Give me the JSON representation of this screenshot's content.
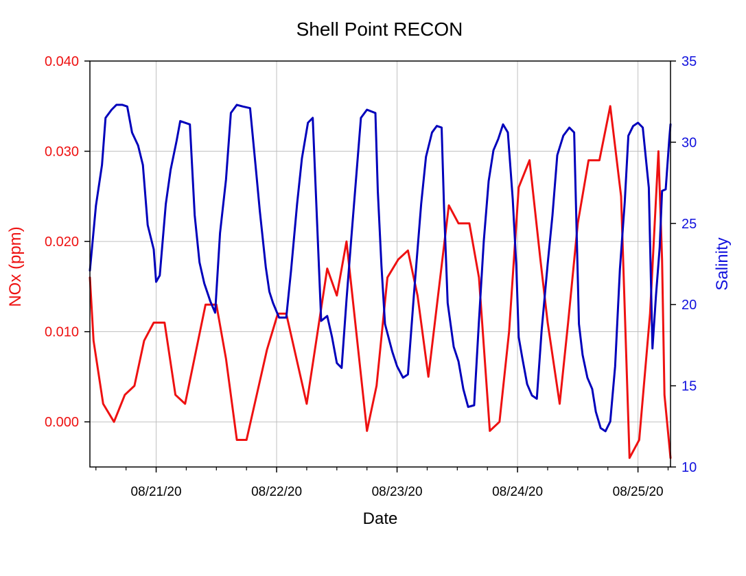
{
  "chart_data": {
    "type": "line",
    "title": "Shell Point RECON",
    "xlabel": "Date",
    "ylabel_left": "NOx (ppm)",
    "ylabel_right": "Salinity",
    "x_unit": "days since 08/20/20 00:00",
    "x_range": [
      0.45,
      5.27
    ],
    "x_ticks": [
      {
        "x": 1,
        "label": "08/21/20"
      },
      {
        "x": 2,
        "label": "08/22/20"
      },
      {
        "x": 3,
        "label": "08/23/20"
      },
      {
        "x": 4,
        "label": "08/24/20"
      },
      {
        "x": 5,
        "label": "08/25/20"
      }
    ],
    "x_minor_step": 0.25,
    "ylim_left": [
      -0.005,
      0.04
    ],
    "y_ticks_left": [
      "0.000",
      "0.010",
      "0.020",
      "0.030",
      "0.040"
    ],
    "ylim_right": [
      10,
      35
    ],
    "y_ticks_right": [
      "10",
      "15",
      "20",
      "25",
      "30",
      "35"
    ],
    "grid": true,
    "colors": {
      "nox": "#ee1111",
      "salinity": "#0000bb",
      "left_axis": "#ee1111",
      "right_axis": "#1111dd",
      "grid": "#c0c0c0",
      "text": "#000000"
    },
    "series": [
      {
        "name": "NOx",
        "axis": "left",
        "points": [
          [
            0.45,
            0.016
          ],
          [
            0.48,
            0.009
          ],
          [
            0.56,
            0.002
          ],
          [
            0.65,
            0.0
          ],
          [
            0.74,
            0.003
          ],
          [
            0.82,
            0.004
          ],
          [
            0.9,
            0.009
          ],
          [
            0.98,
            0.011
          ],
          [
            1.07,
            0.011
          ],
          [
            1.16,
            0.003
          ],
          [
            1.24,
            0.002
          ],
          [
            1.41,
            0.013
          ],
          [
            1.5,
            0.013
          ],
          [
            1.58,
            0.007
          ],
          [
            1.67,
            -0.002
          ],
          [
            1.75,
            -0.002
          ],
          [
            1.92,
            0.008
          ],
          [
            2.01,
            0.012
          ],
          [
            2.08,
            0.012
          ],
          [
            2.25,
            0.002
          ],
          [
            2.42,
            0.017
          ],
          [
            2.5,
            0.014
          ],
          [
            2.58,
            0.02
          ],
          [
            2.75,
            -0.001
          ],
          [
            2.83,
            0.004
          ],
          [
            2.92,
            0.016
          ],
          [
            3.01,
            0.018
          ],
          [
            3.09,
            0.019
          ],
          [
            3.17,
            0.014
          ],
          [
            3.26,
            0.005
          ],
          [
            3.43,
            0.024
          ],
          [
            3.51,
            0.022
          ],
          [
            3.6,
            0.022
          ],
          [
            3.68,
            0.016
          ],
          [
            3.77,
            -0.001
          ],
          [
            3.85,
            0.0
          ],
          [
            3.93,
            0.01
          ],
          [
            4.01,
            0.026
          ],
          [
            4.1,
            0.029
          ],
          [
            4.19,
            0.018
          ],
          [
            4.25,
            0.011
          ],
          [
            4.35,
            0.002
          ],
          [
            4.42,
            0.011
          ],
          [
            4.5,
            0.022
          ],
          [
            4.59,
            0.029
          ],
          [
            4.68,
            0.029
          ],
          [
            4.77,
            0.035
          ],
          [
            4.86,
            0.025
          ],
          [
            4.93,
            -0.004
          ],
          [
            5.01,
            -0.002
          ],
          [
            5.1,
            0.012
          ],
          [
            5.17,
            0.03
          ],
          [
            5.2,
            0.018
          ],
          [
            5.22,
            0.003
          ],
          [
            5.27,
            -0.004
          ]
        ]
      },
      {
        "name": "Salinity",
        "axis": "right",
        "points": [
          [
            0.45,
            22.1
          ],
          [
            0.5,
            26.1
          ],
          [
            0.55,
            28.6
          ],
          [
            0.58,
            31.5
          ],
          [
            0.63,
            32.0
          ],
          [
            0.67,
            32.3
          ],
          [
            0.72,
            32.3
          ],
          [
            0.76,
            32.2
          ],
          [
            0.8,
            30.6
          ],
          [
            0.85,
            29.8
          ],
          [
            0.89,
            28.6
          ],
          [
            0.93,
            24.9
          ],
          [
            0.98,
            23.4
          ],
          [
            1.0,
            21.4
          ],
          [
            1.03,
            21.8
          ],
          [
            1.08,
            26.2
          ],
          [
            1.12,
            28.3
          ],
          [
            1.17,
            30.1
          ],
          [
            1.2,
            31.3
          ],
          [
            1.28,
            31.1
          ],
          [
            1.32,
            25.5
          ],
          [
            1.36,
            22.6
          ],
          [
            1.4,
            21.3
          ],
          [
            1.45,
            20.2
          ],
          [
            1.49,
            19.5
          ],
          [
            1.53,
            24.4
          ],
          [
            1.58,
            27.7
          ],
          [
            1.62,
            31.8
          ],
          [
            1.67,
            32.3
          ],
          [
            1.72,
            32.2
          ],
          [
            1.78,
            32.1
          ],
          [
            1.83,
            28.2
          ],
          [
            1.86,
            25.8
          ],
          [
            1.91,
            22.3
          ],
          [
            1.94,
            20.8
          ],
          [
            1.97,
            20.1
          ],
          [
            2.02,
            19.2
          ],
          [
            2.08,
            19.2
          ],
          [
            2.12,
            22.1
          ],
          [
            2.17,
            26.2
          ],
          [
            2.21,
            29.0
          ],
          [
            2.26,
            31.2
          ],
          [
            2.3,
            31.5
          ],
          [
            2.37,
            19.0
          ],
          [
            2.42,
            19.3
          ],
          [
            2.46,
            18.0
          ],
          [
            2.5,
            16.4
          ],
          [
            2.54,
            16.1
          ],
          [
            2.58,
            20.3
          ],
          [
            2.62,
            24.1
          ],
          [
            2.7,
            31.5
          ],
          [
            2.75,
            32.0
          ],
          [
            2.82,
            31.8
          ],
          [
            2.84,
            27.0
          ],
          [
            2.87,
            22.4
          ],
          [
            2.9,
            18.8
          ],
          [
            2.96,
            17.1
          ],
          [
            3.0,
            16.2
          ],
          [
            3.05,
            15.5
          ],
          [
            3.09,
            15.7
          ],
          [
            3.14,
            20.6
          ],
          [
            3.2,
            26.2
          ],
          [
            3.24,
            29.1
          ],
          [
            3.29,
            30.6
          ],
          [
            3.33,
            31.0
          ],
          [
            3.37,
            30.9
          ],
          [
            3.39,
            26.0
          ],
          [
            3.42,
            20.1
          ],
          [
            3.47,
            17.4
          ],
          [
            3.51,
            16.5
          ],
          [
            3.55,
            14.8
          ],
          [
            3.59,
            13.7
          ],
          [
            3.64,
            13.8
          ],
          [
            3.68,
            19.0
          ],
          [
            3.72,
            23.9
          ],
          [
            3.76,
            27.6
          ],
          [
            3.8,
            29.5
          ],
          [
            3.84,
            30.2
          ],
          [
            3.88,
            31.1
          ],
          [
            3.92,
            30.6
          ],
          [
            3.96,
            26.5
          ],
          [
            3.99,
            22.4
          ],
          [
            4.01,
            18.0
          ],
          [
            4.04,
            16.7
          ],
          [
            4.08,
            15.1
          ],
          [
            4.12,
            14.4
          ],
          [
            4.16,
            14.2
          ],
          [
            4.2,
            18.4
          ],
          [
            4.25,
            22.5
          ],
          [
            4.29,
            25.5
          ],
          [
            4.33,
            29.2
          ],
          [
            4.38,
            30.4
          ],
          [
            4.43,
            30.9
          ],
          [
            4.47,
            30.6
          ],
          [
            4.51,
            18.8
          ],
          [
            4.54,
            16.9
          ],
          [
            4.58,
            15.5
          ],
          [
            4.62,
            14.8
          ],
          [
            4.65,
            13.4
          ],
          [
            4.69,
            12.4
          ],
          [
            4.73,
            12.2
          ],
          [
            4.77,
            12.8
          ],
          [
            4.81,
            16.2
          ],
          [
            4.85,
            22.2
          ],
          [
            4.89,
            26.3
          ],
          [
            4.92,
            30.4
          ],
          [
            4.96,
            31.0
          ],
          [
            5.0,
            31.2
          ],
          [
            5.04,
            30.9
          ],
          [
            5.09,
            27.2
          ],
          [
            5.12,
            17.3
          ],
          [
            5.15,
            20.6
          ],
          [
            5.18,
            23.5
          ],
          [
            5.2,
            27.0
          ],
          [
            5.23,
            27.1
          ],
          [
            5.26,
            30.2
          ],
          [
            5.27,
            31.1
          ]
        ]
      }
    ]
  }
}
